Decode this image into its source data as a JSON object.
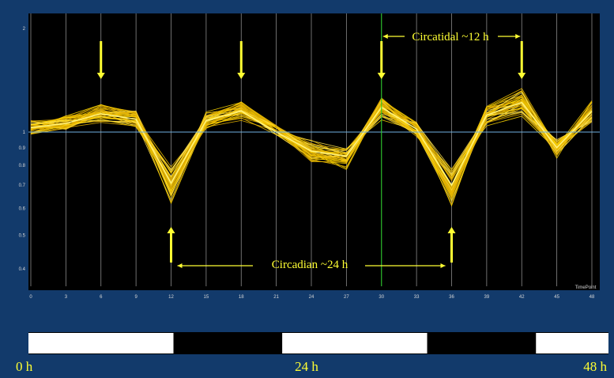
{
  "colors": {
    "background": "#123a6b",
    "plot_background": "#000000",
    "profile_line": "#ffd700",
    "annotation": "#ffff33",
    "reference_line": "#6fb0e0",
    "cursor_line": "#22cc22",
    "light_phase": "#ffffff",
    "dark_phase": "#000000"
  },
  "chart_data": {
    "type": "line",
    "title": "",
    "xlabel": "TimePoint",
    "ylabel": "",
    "y_scale": "log",
    "ylim": [
      0.35,
      2.1
    ],
    "xlim": [
      0,
      48
    ],
    "x_ticks": [
      0,
      3,
      6,
      9,
      12,
      15,
      18,
      21,
      24,
      27,
      30,
      33,
      36,
      39,
      42,
      45,
      48
    ],
    "x_tick_labels": [
      "0",
      "3",
      "6",
      "9",
      "12",
      "15",
      "18",
      "21",
      "24",
      "27",
      "30",
      "33",
      "36",
      "39",
      "42",
      "45",
      "48"
    ],
    "y_ticks": [
      2,
      1,
      0.9,
      0.8,
      0.7,
      0.6,
      0.5,
      0.4
    ],
    "y_tick_labels": [
      "2",
      "1",
      "0.9",
      "0.8",
      "0.7",
      "0.6",
      "0.5",
      "0.4"
    ],
    "reference_line_y": 1,
    "cursor_x": 30,
    "grid": "vertical",
    "mean_profile": {
      "x": [
        0,
        3,
        6,
        9,
        12,
        15,
        18,
        21,
        24,
        27,
        30,
        33,
        36,
        39,
        42,
        45,
        48
      ],
      "y": [
        1.03,
        1.06,
        1.13,
        1.09,
        0.71,
        1.08,
        1.15,
        1.0,
        0.88,
        0.85,
        1.18,
        1.02,
        0.7,
        1.12,
        1.22,
        0.9,
        1.15
      ]
    },
    "series_count": 40
  },
  "annotations": {
    "circatidal": "Circatidal ~12 h",
    "circadian": "Circadian ~24 h",
    "peak_arrows_x": [
      6,
      18,
      30,
      42
    ],
    "trough_arrows_x": [
      12,
      36
    ]
  },
  "light_dark_bar": {
    "segments": [
      {
        "phase": "light",
        "start": 0,
        "end": 12
      },
      {
        "phase": "dark",
        "start": 12,
        "end": 21
      },
      {
        "phase": "light",
        "start": 21,
        "end": 33
      },
      {
        "phase": "dark",
        "start": 33,
        "end": 42
      },
      {
        "phase": "light",
        "start": 42,
        "end": 48
      }
    ],
    "labels": {
      "start": "0 h",
      "middle": "24 h",
      "end": "48 h"
    }
  }
}
